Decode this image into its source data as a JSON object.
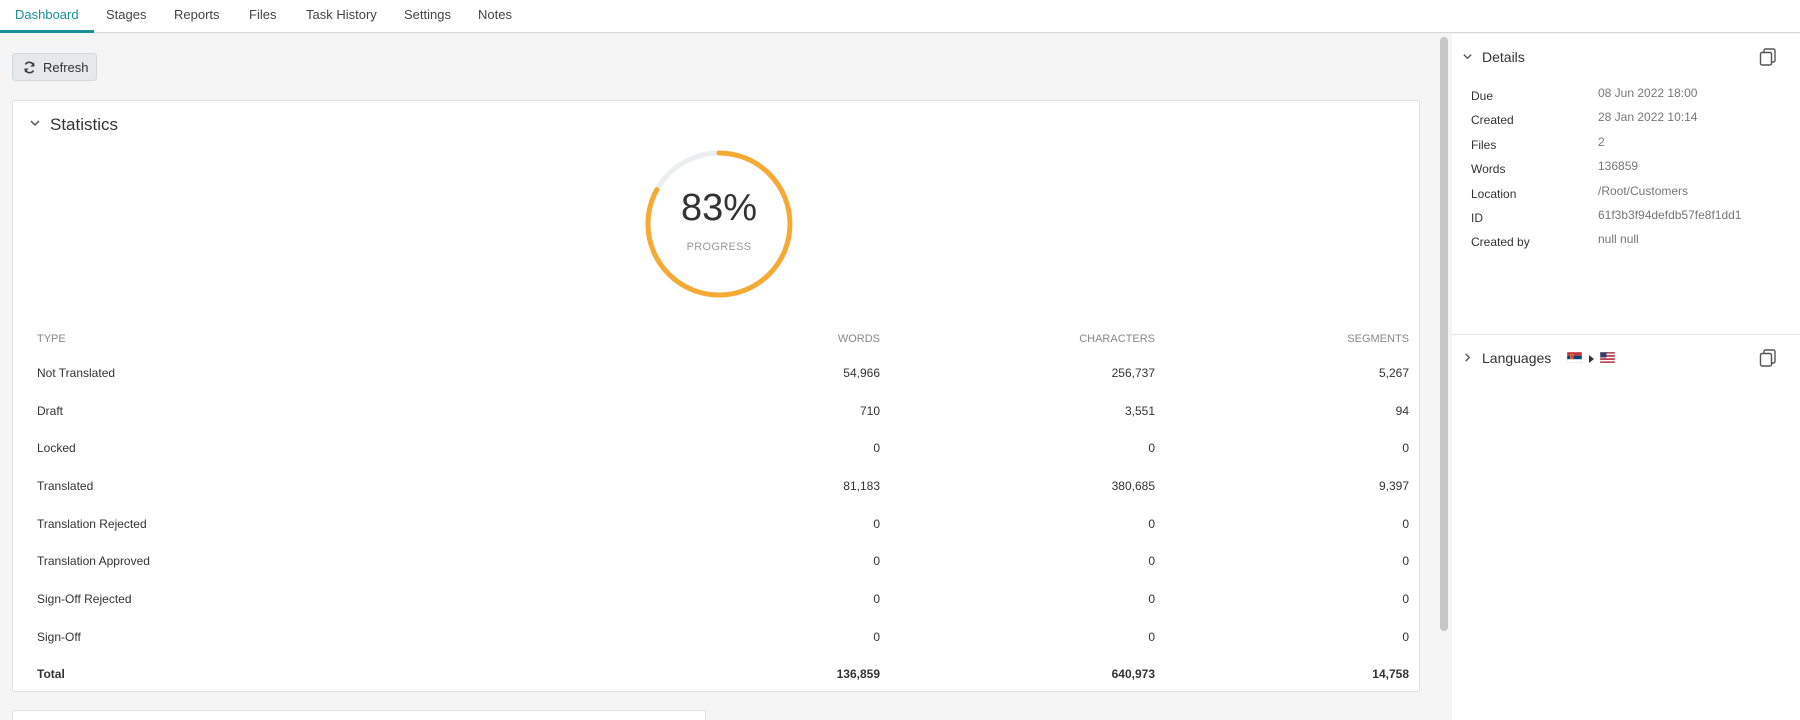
{
  "tabs": [
    {
      "label": "Dashboard",
      "active": true
    },
    {
      "label": "Stages"
    },
    {
      "label": "Reports"
    },
    {
      "label": "Files"
    },
    {
      "label": "Task History"
    },
    {
      "label": "Settings"
    },
    {
      "label": "Notes"
    }
  ],
  "toolbar": {
    "refresh_label": "Refresh",
    "refresh_icon": "refresh-icon"
  },
  "statistics": {
    "title": "Statistics",
    "progress": {
      "value": "83%",
      "label": "PROGRESS",
      "fraction": 0.83,
      "color": "#f7a935",
      "track_color": "#eaeeee"
    },
    "columns": [
      "TYPE",
      "WORDS",
      "CHARACTERS",
      "SEGMENTS"
    ],
    "rows": [
      {
        "type": "Not Translated",
        "words": "54,966",
        "characters": "256,737",
        "segments": "5,267"
      },
      {
        "type": "Draft",
        "words": "710",
        "characters": "3,551",
        "segments": "94"
      },
      {
        "type": "Locked",
        "words": "0",
        "characters": "0",
        "segments": "0"
      },
      {
        "type": "Translated",
        "words": "81,183",
        "characters": "380,685",
        "segments": "9,397"
      },
      {
        "type": "Translation Rejected",
        "words": "0",
        "characters": "0",
        "segments": "0"
      },
      {
        "type": "Translation Approved",
        "words": "0",
        "characters": "0",
        "segments": "0"
      },
      {
        "type": "Sign-Off Rejected",
        "words": "0",
        "characters": "0",
        "segments": "0"
      },
      {
        "type": "Sign-Off",
        "words": "0",
        "characters": "0",
        "segments": "0"
      }
    ],
    "total": {
      "type": "Total",
      "words": "136,859",
      "characters": "640,973",
      "segments": "14,758"
    }
  },
  "details": {
    "title": "Details",
    "items": [
      {
        "label": "Due",
        "value": "08 Jun 2022 18:00"
      },
      {
        "label": "Created",
        "value": "28 Jan 2022 10:14"
      },
      {
        "label": "Files",
        "value": "2"
      },
      {
        "label": "Words",
        "value": "136859"
      },
      {
        "label": "Location",
        "value": "/Root/Customers"
      },
      {
        "label": "ID",
        "value": "61f3b3f94defdb57fe8f1dd1"
      },
      {
        "label": "Created by",
        "value": "null null"
      }
    ]
  },
  "languages": {
    "title": "Languages",
    "source_flag": "serbia-flag-icon",
    "target_flag": "us-flag-icon"
  },
  "colors": {
    "accent": "#1a8f96",
    "progress": "#f7a935"
  }
}
